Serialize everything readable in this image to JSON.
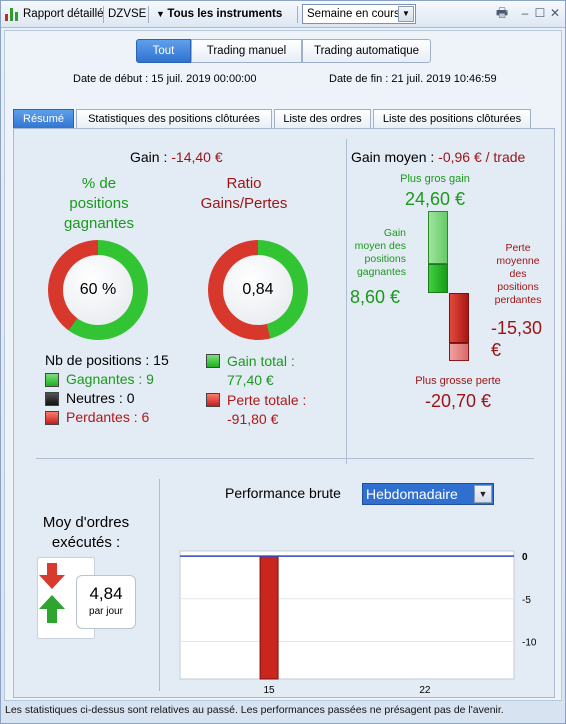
{
  "toolbar": {
    "report_label": "Rapport détaillé",
    "ticker": "DZVSE",
    "instruments_label": "Tous les instruments",
    "period_value": "Semaine en cours"
  },
  "filter": {
    "all": "Tout",
    "manual": "Trading manuel",
    "auto": "Trading automatique"
  },
  "dates": {
    "start": "Date de début :  15 juil. 2019 00:00:00",
    "end": "Date de fin :  21 juil. 2019 10:46:59"
  },
  "tabs": [
    "Résumé",
    "Statistiques des positions clôturées",
    "Liste des ordres",
    "Liste des positions clôturées"
  ],
  "summary": {
    "gain_label": "Gain : ",
    "gain_value": "-14,40 €",
    "pct_title_1": "% de",
    "pct_title_2": "positions",
    "pct_title_3": "gagnantes",
    "pct_value": "60 %",
    "pct_fraction": 0.6,
    "ratio_title_1": "Ratio",
    "ratio_title_2": "Gains/Pertes",
    "ratio_value": "0,84",
    "ratio_fraction": 0.46,
    "nb_positions": "Nb de positions : 15",
    "winning": "Gagnantes : 9",
    "neutral": "Neutres : 0",
    "losing": "Perdantes : 6",
    "gain_total_label": "Gain total :",
    "gain_total_value": "77,40 €",
    "perte_totale_label": "Perte totale :",
    "perte_totale_value": "-91,80 €"
  },
  "avg": {
    "label": "Gain moyen : ",
    "value": "-0,96 € / trade",
    "best_label": "Plus gros gain",
    "best_value": "24,60 €",
    "avg_win_1": "Gain",
    "avg_win_2": "moyen des",
    "avg_win_3": "positions",
    "avg_win_4": "gagnantes",
    "avg_win_value": "8,60 €",
    "avg_loss_1": "Perte",
    "avg_loss_2": "moyenne",
    "avg_loss_3": "des",
    "avg_loss_4": "positions",
    "avg_loss_5": "perdantes",
    "avg_loss_value": "-15,30",
    "avg_loss_unit": "€",
    "worst_label": "Plus grosse perte",
    "worst_value": "-20,70 €"
  },
  "orders": {
    "title_1": "Moy d'ordres",
    "title_2": "exécutés :",
    "value": "4,84",
    "unit": "par jour"
  },
  "perf": {
    "label": "Performance brute",
    "period": "Hebdomadaire"
  },
  "chart_data": {
    "type": "bar",
    "x": [
      15
    ],
    "values": [
      -14.4
    ],
    "x_ticks": [
      "15",
      "22"
    ],
    "y_ticks": [
      "0",
      "-5",
      "-10"
    ],
    "ylim": [
      -14.4,
      0.6
    ],
    "colors": {
      "bar": "#c9261e",
      "zero_line": "#3046c0"
    }
  },
  "status_text": "Les statistiques ci-dessus sont relatives au passé. Les performances passées ne présagent pas de l'avenir."
}
